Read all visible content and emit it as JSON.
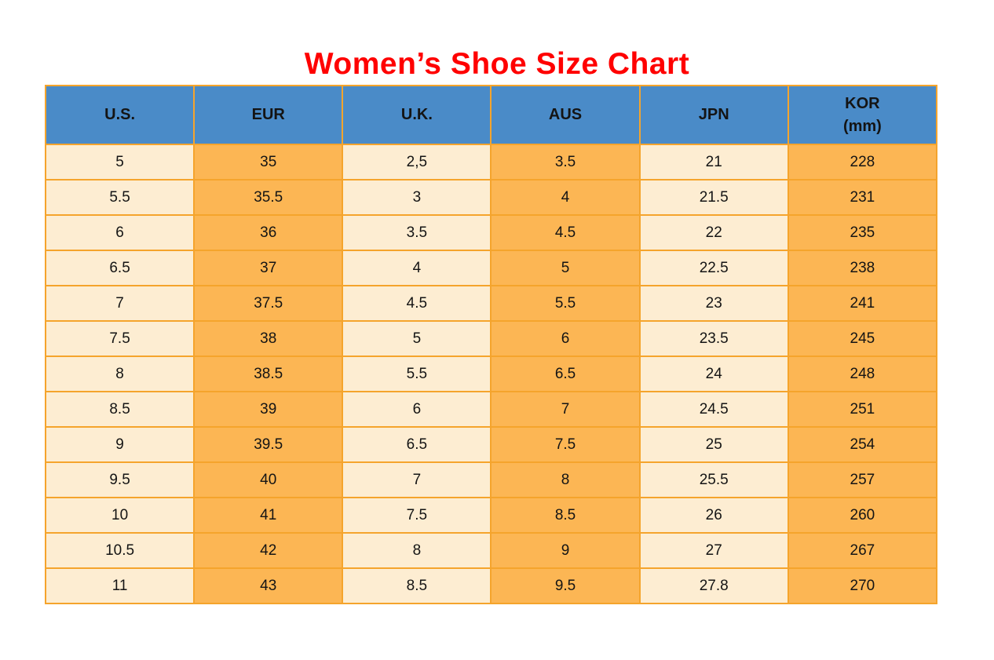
{
  "title": "Women’s Shoe Size Chart",
  "colors": {
    "title_red": "#ff0000",
    "header_blue": "#4a8bc8",
    "cell_cream": "#fdedd2",
    "cell_orange": "#fcb654",
    "border_orange": "#f5a42c",
    "text_dark": "#141414"
  },
  "chart_data": {
    "type": "table",
    "title": "Women’s Shoe Size Chart",
    "columns": [
      "U.S.",
      "EUR",
      "U.K.",
      "AUS",
      "JPN",
      "KOR\n(mm)"
    ],
    "rows": [
      [
        "5",
        "35",
        "2,5",
        "3.5",
        "21",
        "228"
      ],
      [
        "5.5",
        "35.5",
        "3",
        "4",
        "21.5",
        "231"
      ],
      [
        "6",
        "36",
        "3.5",
        "4.5",
        "22",
        "235"
      ],
      [
        "6.5",
        "37",
        "4",
        "5",
        "22.5",
        "238"
      ],
      [
        "7",
        "37.5",
        "4.5",
        "5.5",
        "23",
        "241"
      ],
      [
        "7.5",
        "38",
        "5",
        "6",
        "23.5",
        "245"
      ],
      [
        "8",
        "38.5",
        "5.5",
        "6.5",
        "24",
        "248"
      ],
      [
        "8.5",
        "39",
        "6",
        "7",
        "24.5",
        "251"
      ],
      [
        "9",
        "39.5",
        "6.5",
        "7.5",
        "25",
        "254"
      ],
      [
        "9.5",
        "40",
        "7",
        "8",
        "25.5",
        "257"
      ],
      [
        "10",
        "41",
        "7.5",
        "8.5",
        "26",
        "260"
      ],
      [
        "10.5",
        "42",
        "8",
        "9",
        "27",
        "267"
      ],
      [
        "11",
        "43",
        "8.5",
        "9.5",
        "27.8",
        "270"
      ]
    ],
    "layout": {
      "column_stripe_light": [
        0,
        2,
        4
      ],
      "column_stripe_dark": [
        1,
        3,
        5
      ],
      "header_background": "#4a8bc8",
      "grid": true
    }
  }
}
